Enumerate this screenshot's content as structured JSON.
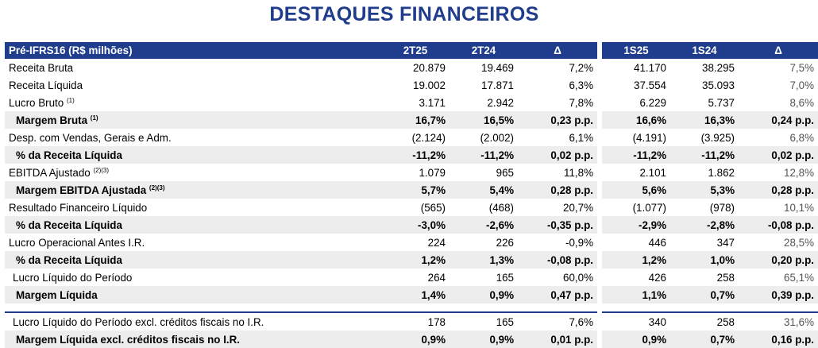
{
  "title": "DESTAQUES FINANCEIROS",
  "header": {
    "label": "Pré-IFRS16 (R$ milhões)",
    "cols": [
      "2T25",
      "2T24",
      "Δ",
      "1S25",
      "1S24",
      "Δ"
    ]
  },
  "rows": [
    {
      "label": "Receita Bruta",
      "sup": "",
      "v": [
        "20.879",
        "19.469",
        "7,2%",
        "41.170",
        "38.295",
        "7,5%"
      ]
    },
    {
      "label": "Receita Líquida",
      "sup": "",
      "v": [
        "19.002",
        "17.871",
        "6,3%",
        "37.554",
        "35.093",
        "7,0%"
      ]
    },
    {
      "label": "Lucro Bruto",
      "sup": "(1)",
      "v": [
        "3.171",
        "2.942",
        "7,8%",
        "6.229",
        "5.737",
        "8,6%"
      ]
    },
    {
      "label": "Margem Bruta",
      "sup": "(1)",
      "v": [
        "16,7%",
        "16,5%",
        "0,23 p.p.",
        "16,6%",
        "16,3%",
        "0,24 p.p."
      ]
    },
    {
      "label": "Desp. com Vendas, Gerais e Adm.",
      "sup": "",
      "v": [
        "(2.124)",
        "(2.002)",
        "6,1%",
        "(4.191)",
        "(3.925)",
        "6,8%"
      ]
    },
    {
      "label": "% da Receita Líquida",
      "sup": "",
      "v": [
        "-11,2%",
        "-11,2%",
        "0,02 p.p.",
        "-11,2%",
        "-11,2%",
        "0,02 p.p."
      ]
    },
    {
      "label": "EBITDA Ajustado",
      "sup": "(2)(3)",
      "v": [
        "1.079",
        "965",
        "11,8%",
        "2.101",
        "1.862",
        "12,8%"
      ]
    },
    {
      "label": "Margem EBITDA Ajustada",
      "sup": "(2)(3)",
      "v": [
        "5,7%",
        "5,4%",
        "0,28 p.p.",
        "5,6%",
        "5,3%",
        "0,28 p.p."
      ]
    },
    {
      "label": "Resultado Financeiro Líquido",
      "sup": "",
      "v": [
        "(565)",
        "(468)",
        "20,7%",
        "(1.077)",
        "(978)",
        "10,1%"
      ]
    },
    {
      "label": "% da Receita Líquida",
      "sup": "",
      "v": [
        "-3,0%",
        "-2,6%",
        "-0,35 p.p.",
        "-2,9%",
        "-2,8%",
        "-0,08 p.p."
      ]
    },
    {
      "label": "Lucro Operacional Antes I.R.",
      "sup": "",
      "v": [
        "224",
        "226",
        "-0,9%",
        "446",
        "347",
        "28,5%"
      ]
    },
    {
      "label": "% da Receita Líquida",
      "sup": "",
      "v": [
        "1,2%",
        "1,3%",
        "-0,08 p.p.",
        "1,2%",
        "1,0%",
        "0,20 p.p."
      ]
    },
    {
      "label": "Lucro Líquido do Período",
      "sup": "",
      "v": [
        "264",
        "165",
        "60,0%",
        "426",
        "258",
        "65,1%"
      ]
    },
    {
      "label": "Margem Líquida",
      "sup": "",
      "v": [
        "1,4%",
        "0,9%",
        "0,47 p.p.",
        "1,1%",
        "0,7%",
        "0,39 p.p."
      ]
    },
    {
      "label": "Lucro Líquido do Período excl. créditos fiscais no I.R.",
      "sup": "",
      "v": [
        "178",
        "165",
        "7,6%",
        "340",
        "258",
        "31,6%"
      ]
    },
    {
      "label": "Margem Líquida excl. créditos fiscais no I.R.",
      "sup": "",
      "v": [
        "0,9%",
        "0,9%",
        "0,01 p.p.",
        "0,9%",
        "0,7%",
        "0,16 p.p."
      ]
    }
  ]
}
